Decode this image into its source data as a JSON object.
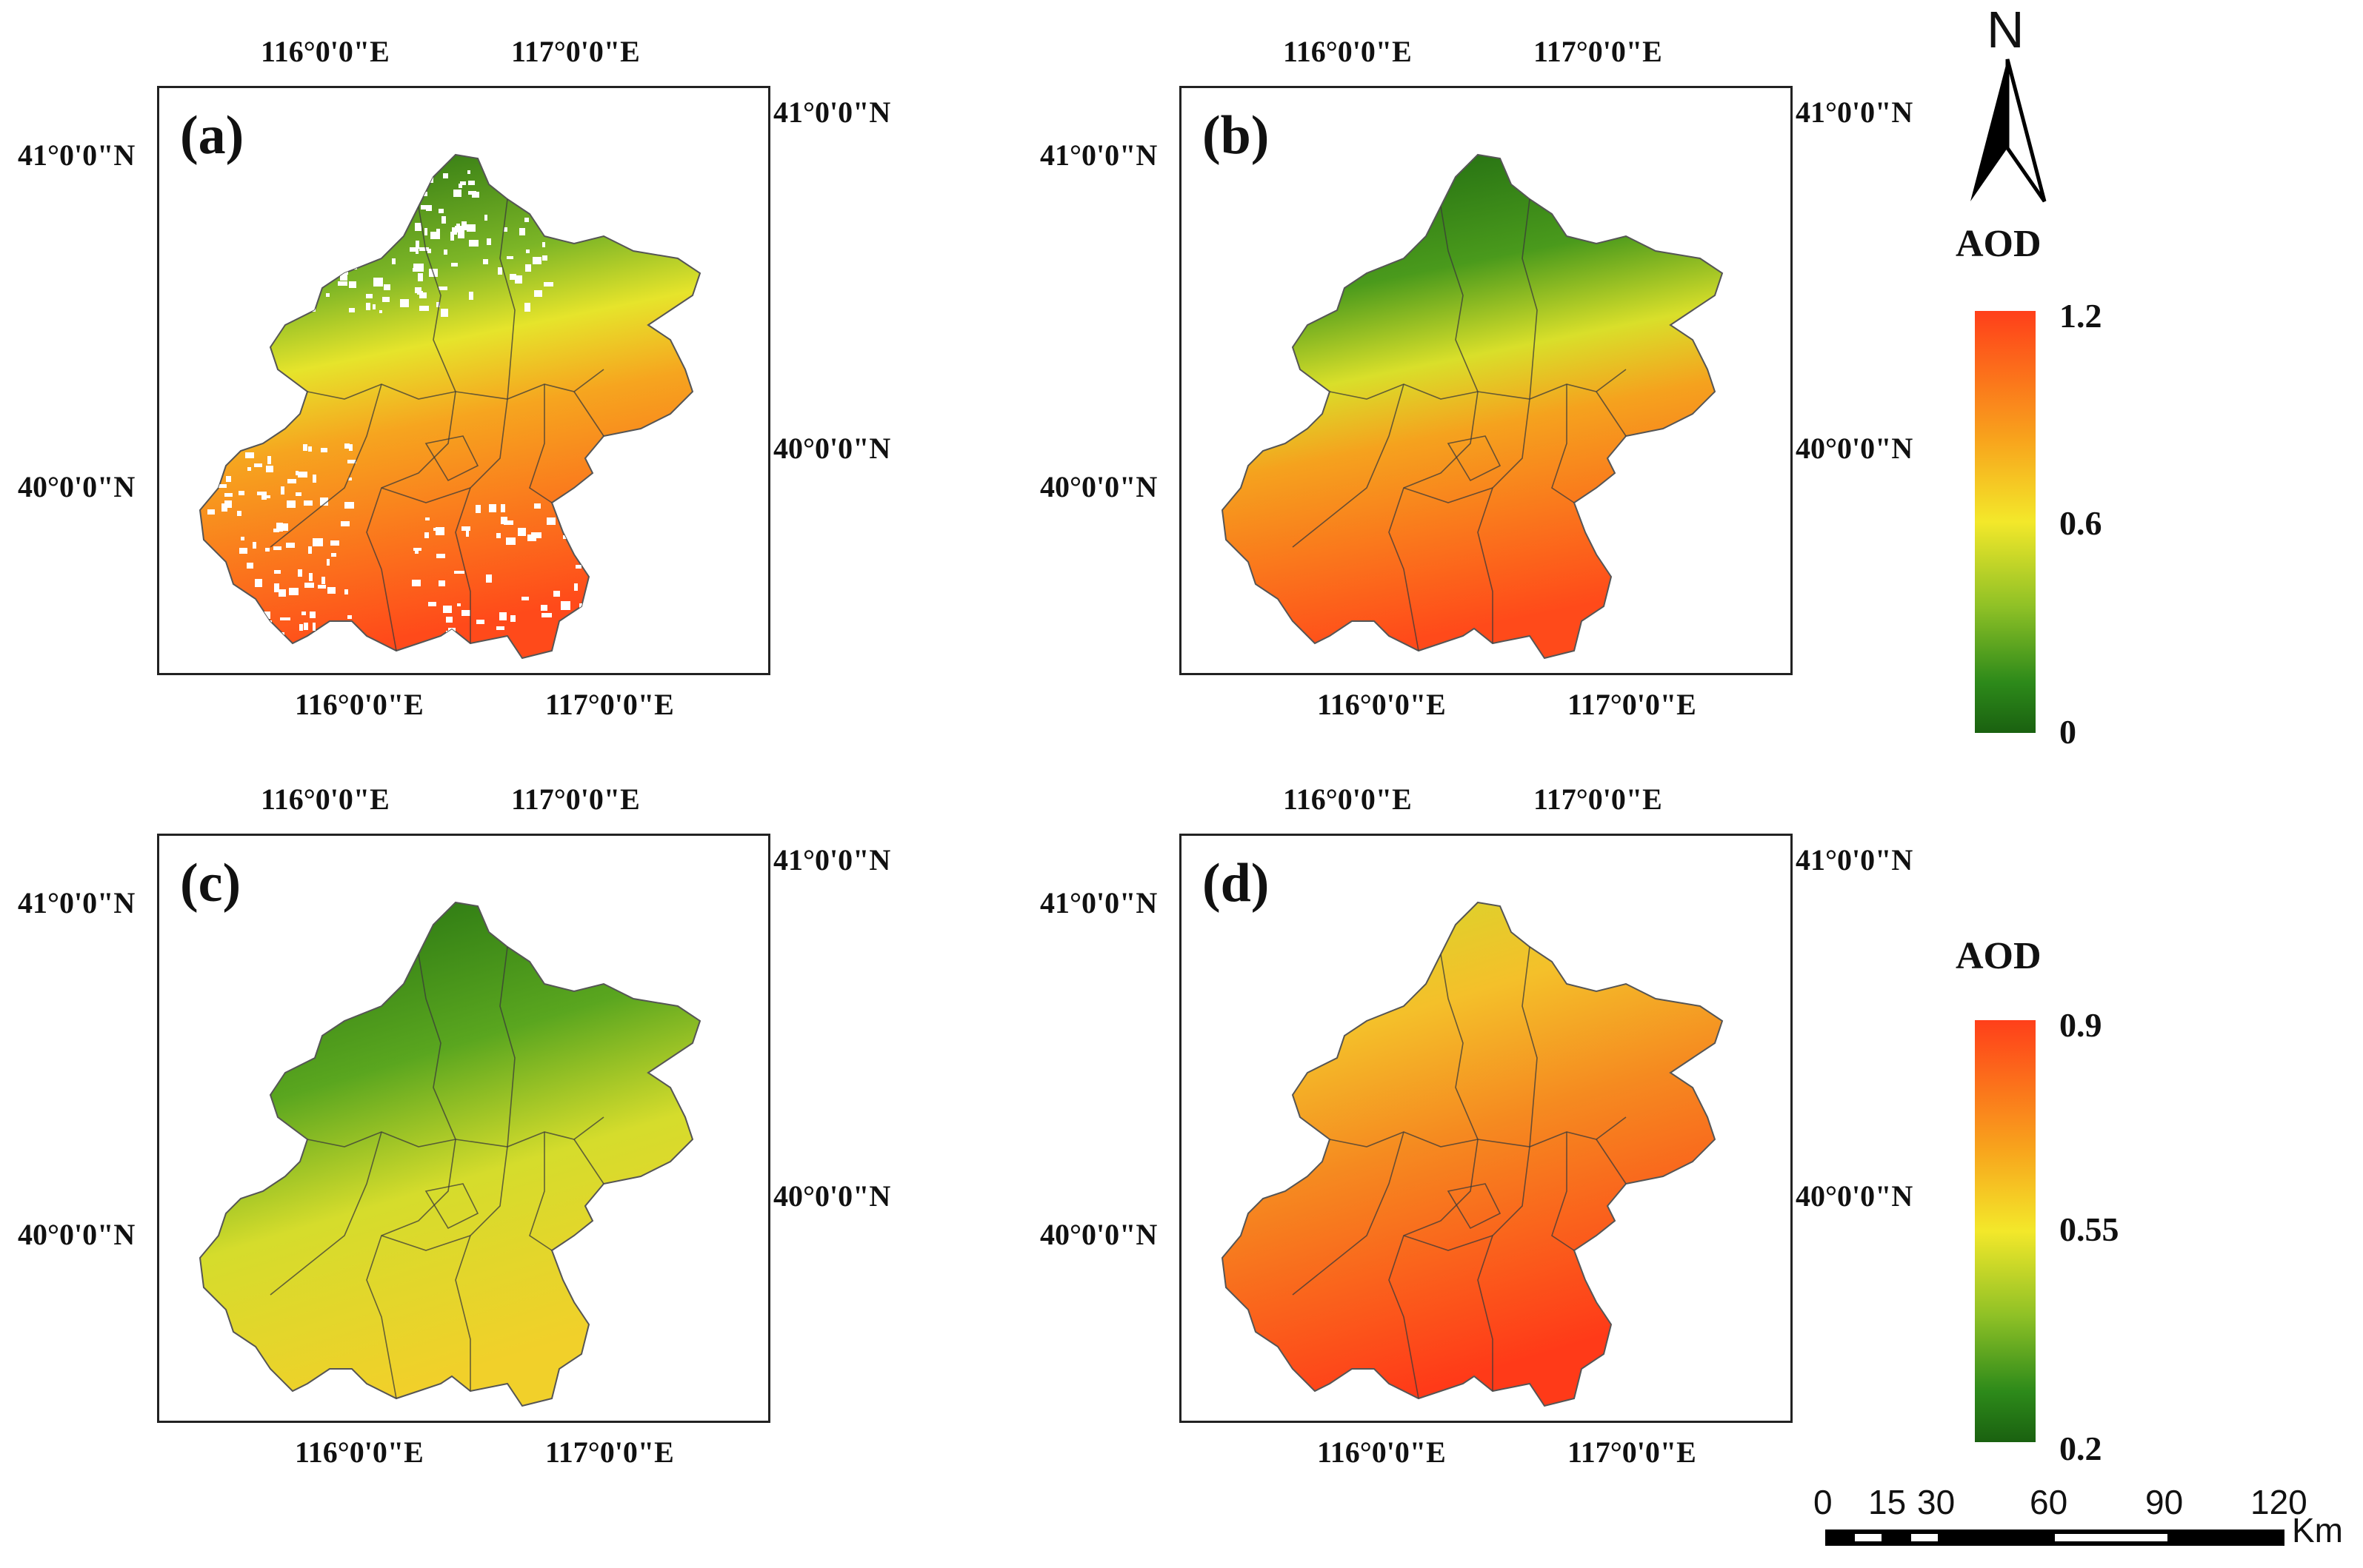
{
  "colors": {
    "ramp_green": "#1e6b0f",
    "ramp_yellow": "#f6ec2c",
    "ramp_orange": "#f5a41e",
    "ramp_red": "#ff3f1a",
    "border": "#222222"
  },
  "panels": [
    {
      "label": "(a)",
      "style": "sparse",
      "top_ticks": [
        "116°0'0\"E",
        "117°0'0\"E"
      ],
      "bottom_ticks": [
        "116°0'0\"E",
        "117°0'0\"E"
      ],
      "left_ticks": [
        "41°0'0\"N",
        "40°0'0\"N"
      ],
      "right_ticks": [
        "41°0'0\"N",
        "40°0'0\"N"
      ]
    },
    {
      "label": "(b)",
      "style": "full",
      "top_ticks": [
        "116°0'0\"E",
        "117°0'0\"E"
      ],
      "bottom_ticks": [
        "116°0'0\"E",
        "117°0'0\"E"
      ],
      "left_ticks": [
        "41°0'0\"N",
        "40°0'0\"N"
      ],
      "right_ticks": [
        "41°0'0\"N",
        "40°0'0\"N"
      ]
    },
    {
      "label": "(c)",
      "style": "low",
      "top_ticks": [
        "116°0'0\"E",
        "117°0'0\"E"
      ],
      "bottom_ticks": [
        "116°0'0\"E",
        "117°0'0\"E"
      ],
      "left_ticks": [
        "41°0'0\"N",
        "40°0'0\"N"
      ],
      "right_ticks": [
        "41°0'0\"N",
        "40°0'0\"N"
      ]
    },
    {
      "label": "(d)",
      "style": "high",
      "top_ticks": [
        "116°0'0\"E",
        "117°0'0\"E"
      ],
      "bottom_ticks": [
        "116°0'0\"E",
        "117°0'0\"E"
      ],
      "left_ticks": [
        "41°0'0\"N",
        "40°0'0\"N"
      ],
      "right_ticks": [
        "41°0'0\"N",
        "40°0'0\"N"
      ]
    }
  ],
  "north_arrow": {
    "label": "N"
  },
  "legend_top": {
    "title": "AOD",
    "max": "1.2",
    "mid": "0.6",
    "min": "0"
  },
  "legend_bottom": {
    "title": "AOD",
    "max": "0.9",
    "mid": "0.55",
    "min": "0.2"
  },
  "scale_bar": {
    "ticks": [
      "0",
      "15",
      "30",
      "60",
      "90",
      "120"
    ],
    "unit": "Km"
  }
}
